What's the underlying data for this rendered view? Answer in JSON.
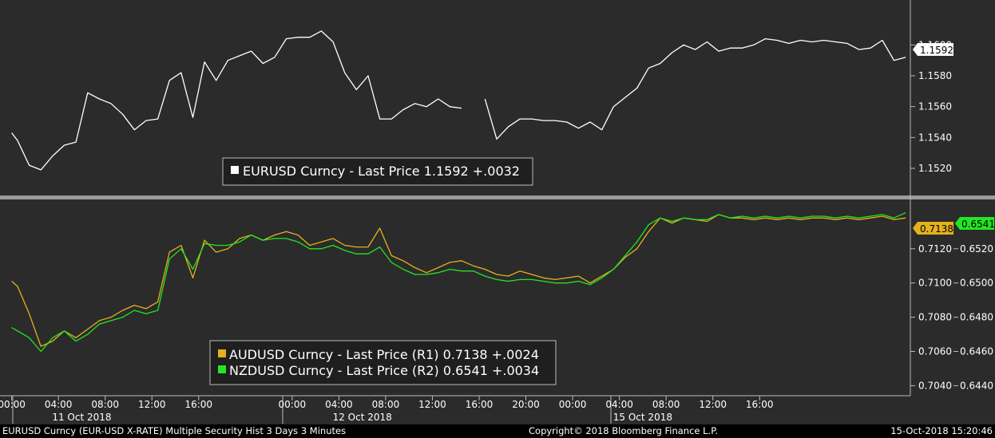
{
  "footer": {
    "left": "EURUSD Curncy (EUR-USD X-RATE) Multiple Security Hist   3 Days 3 Minutes",
    "center": "Copyright© 2018 Bloomberg Finance L.P.",
    "right": "15-Oct-2018 15:20:46"
  },
  "colors": {
    "background": "#2b2b2b",
    "eurusd": "#ffffff",
    "audusd": "#e3b21c",
    "nzdusd": "#22e622",
    "grid": "#5a5a5a"
  },
  "chart_data": [
    {
      "type": "line",
      "panel": "top",
      "legend": [
        "EURUSD Curncy - Last Price 1.1592  +.0032"
      ],
      "ylim": [
        1.1505,
        1.1625
      ],
      "yticks": [
        "1.1600",
        "1.1580",
        "1.1560",
        "1.1540",
        "1.1520"
      ],
      "last_value_tag": "1.1592",
      "series": [
        {
          "name": "EURUSD Curncy - Last Price",
          "x": [
            0,
            0.5,
            1.5,
            2.5,
            3.5,
            4.5,
            5.5,
            6.5,
            7.5,
            8.5,
            9.5,
            10.5,
            11.5,
            12.5,
            13.5,
            14.5,
            15.5,
            16.5,
            17.5,
            18.5,
            19.5,
            20.5,
            21.5,
            22.5,
            23.5,
            24.5,
            25.5,
            26.5,
            27.5,
            28.5,
            29.5,
            30.5,
            31.5,
            32.5,
            33.5,
            34.5,
            35.5,
            36.5,
            37.5,
            38.5,
            39.5,
            40.5,
            41.5,
            42.5,
            43.5,
            44.5,
            45.5,
            46.5,
            47.5,
            48.5,
            49.5,
            50.5,
            51.5,
            52.5,
            53.5,
            54.5,
            55.5,
            56.5,
            57.5,
            58.5,
            59.5,
            60.5,
            61.5,
            62.5,
            63.5,
            64.5,
            65.5,
            66.5,
            67.5,
            68.5,
            69.5,
            70.5,
            71.5,
            72.5,
            73.5,
            74.5,
            75.5,
            76.5
          ],
          "values": [
            1.1543,
            1.1538,
            1.1522,
            1.1519,
            1.1528,
            1.1535,
            1.1537,
            1.1569,
            1.1565,
            1.1562,
            1.1555,
            1.1545,
            1.1551,
            1.1552,
            1.1577,
            1.1582,
            1.1553,
            1.1589,
            1.1577,
            1.159,
            1.1593,
            1.1596,
            1.1588,
            1.1592,
            1.1604,
            1.1605,
            1.1605,
            1.1609,
            1.1602,
            1.1582,
            1.1571,
            1.158,
            1.1552,
            1.1552,
            1.1558,
            1.1562,
            1.156,
            1.1565,
            1.156,
            1.1559,
            null,
            1.1565,
            1.1539,
            1.1547,
            1.1552,
            1.1552,
            1.1551,
            1.1551,
            1.155,
            1.1546,
            1.155,
            1.1545,
            1.156,
            1.1566,
            1.1572,
            1.1585,
            1.1588,
            1.1595,
            1.16,
            1.1597,
            1.1602,
            1.1596,
            1.1598,
            1.1598,
            1.16,
            1.1604,
            1.1603,
            1.1601,
            1.1603,
            1.1602,
            1.1603,
            1.1602,
            1.1601,
            1.1597,
            1.1598,
            1.1603,
            1.159,
            1.1592
          ]
        }
      ]
    },
    {
      "type": "line",
      "panel": "bottom",
      "legend": [
        "AUDUSD Curncy - Last Price (R1) 0.7138  +.0024",
        "NZDUSD Curncy - Last Price (R2) 0.6541  +.0034"
      ],
      "ylim_r1": [
        0.7036,
        0.7146
      ],
      "ylim_r2": [
        0.6436,
        0.6546
      ],
      "yticks_r1": [
        "0.7120",
        "0.7100",
        "0.7080",
        "0.7060",
        "0.7040"
      ],
      "yticks_r2": [
        "0.6520",
        "0.6500",
        "0.6480",
        "0.6460",
        "0.6440"
      ],
      "last_value_tags": [
        "0.7138",
        "0.6541"
      ],
      "series": [
        {
          "name": "AUDUSD Curncy - Last Price (R1)",
          "axis": "r1",
          "x": [
            0,
            0.5,
            1.5,
            2.5,
            3.5,
            4.5,
            5.5,
            6.5,
            7.5,
            8.5,
            9.5,
            10.5,
            11.5,
            12.5,
            13.5,
            14.5,
            15.5,
            16.5,
            17.5,
            18.5,
            19.5,
            20.5,
            21.5,
            22.5,
            23.5,
            24.5,
            25.5,
            26.5,
            27.5,
            28.5,
            29.5,
            30.5,
            31.5,
            32.5,
            33.5,
            34.5,
            35.5,
            36.5,
            37.5,
            38.5,
            39.5,
            40.5,
            41.5,
            42.5,
            43.5,
            44.5,
            45.5,
            46.5,
            47.5,
            48.5,
            49.5,
            50.5,
            51.5,
            52.5,
            53.5,
            54.5,
            55.5,
            56.5,
            57.5,
            58.5,
            59.5,
            60.5,
            61.5,
            62.5,
            63.5,
            64.5,
            65.5,
            66.5,
            67.5,
            68.5,
            69.5,
            70.5,
            71.5,
            72.5,
            73.5,
            74.5,
            75.5,
            76.5
          ],
          "values": [
            0.7101,
            0.7098,
            0.7082,
            0.7063,
            0.7066,
            0.7072,
            0.7068,
            0.7073,
            0.7078,
            0.708,
            0.7084,
            0.7087,
            0.7085,
            0.7089,
            0.7118,
            0.7122,
            0.7103,
            0.7125,
            0.7118,
            0.712,
            0.7126,
            0.7128,
            0.7125,
            0.7128,
            0.713,
            0.7128,
            0.7122,
            0.7124,
            0.7126,
            0.7122,
            0.7121,
            0.7121,
            0.7132,
            0.7116,
            0.7113,
            0.7109,
            0.7106,
            0.7109,
            0.7112,
            0.7113,
            0.711,
            0.7108,
            0.7105,
            0.7104,
            0.7107,
            0.7105,
            0.7103,
            0.7102,
            0.7103,
            0.7104,
            0.71,
            0.7104,
            0.7108,
            0.7115,
            0.712,
            0.713,
            0.7138,
            0.7135,
            0.7138,
            0.7137,
            0.7136,
            0.714,
            0.7138,
            0.7138,
            0.7137,
            0.7138,
            0.7137,
            0.7138,
            0.7137,
            0.7138,
            0.7138,
            0.7137,
            0.7138,
            0.7137,
            0.7138,
            0.7139,
            0.7137,
            0.7138
          ]
        },
        {
          "name": "NZDUSD Curncy - Last Price (R2)",
          "axis": "r2",
          "x": [
            0,
            0.5,
            1.5,
            2.5,
            3.5,
            4.5,
            5.5,
            6.5,
            7.5,
            8.5,
            9.5,
            10.5,
            11.5,
            12.5,
            13.5,
            14.5,
            15.5,
            16.5,
            17.5,
            18.5,
            19.5,
            20.5,
            21.5,
            22.5,
            23.5,
            24.5,
            25.5,
            26.5,
            27.5,
            28.5,
            29.5,
            30.5,
            31.5,
            32.5,
            33.5,
            34.5,
            35.5,
            36.5,
            37.5,
            38.5,
            39.5,
            40.5,
            41.5,
            42.5,
            43.5,
            44.5,
            45.5,
            46.5,
            47.5,
            48.5,
            49.5,
            50.5,
            51.5,
            52.5,
            53.5,
            54.5,
            55.5,
            56.5,
            57.5,
            58.5,
            59.5,
            60.5,
            61.5,
            62.5,
            63.5,
            64.5,
            65.5,
            66.5,
            67.5,
            68.5,
            69.5,
            70.5,
            71.5,
            72.5,
            73.5,
            74.5,
            75.5,
            76.5
          ],
          "values": [
            0.6474,
            0.6472,
            0.6468,
            0.646,
            0.6468,
            0.6472,
            0.6466,
            0.647,
            0.6476,
            0.6478,
            0.648,
            0.6484,
            0.6482,
            0.6484,
            0.6514,
            0.652,
            0.6508,
            0.6523,
            0.6522,
            0.6522,
            0.6524,
            0.6528,
            0.6525,
            0.6526,
            0.6526,
            0.6524,
            0.652,
            0.652,
            0.6522,
            0.6519,
            0.6517,
            0.6517,
            0.6521,
            0.6512,
            0.6508,
            0.6505,
            0.6505,
            0.6506,
            0.6508,
            0.6507,
            0.6507,
            0.6504,
            0.6502,
            0.6501,
            0.6502,
            0.6502,
            0.6501,
            0.65,
            0.65,
            0.6501,
            0.6499,
            0.6503,
            0.6508,
            0.6516,
            0.6524,
            0.6534,
            0.6538,
            0.6536,
            0.6538,
            0.6537,
            0.6537,
            0.654,
            0.6538,
            0.6539,
            0.6538,
            0.6539,
            0.6538,
            0.6539,
            0.6538,
            0.6539,
            0.6539,
            0.6538,
            0.6539,
            0.6538,
            0.6539,
            0.654,
            0.6538,
            0.6541
          ]
        }
      ]
    }
  ],
  "x_axis": {
    "time_labels": [
      "00:00",
      "04:00",
      "08:00",
      "12:00",
      "16:00",
      "00:00",
      "04:00",
      "08:00",
      "12:00",
      "16:00",
      "20:00",
      "00:00",
      "04:00",
      "08:00",
      "12:00",
      "16:00"
    ],
    "time_positions": [
      0,
      4,
      8,
      12,
      16,
      24,
      28,
      32,
      36,
      40,
      44,
      48,
      52,
      56,
      60,
      64
    ],
    "dates": [
      "11 Oct 2018",
      "12 Oct 2018",
      "15 Oct 2018"
    ],
    "date_positions": [
      6,
      30,
      54
    ]
  }
}
